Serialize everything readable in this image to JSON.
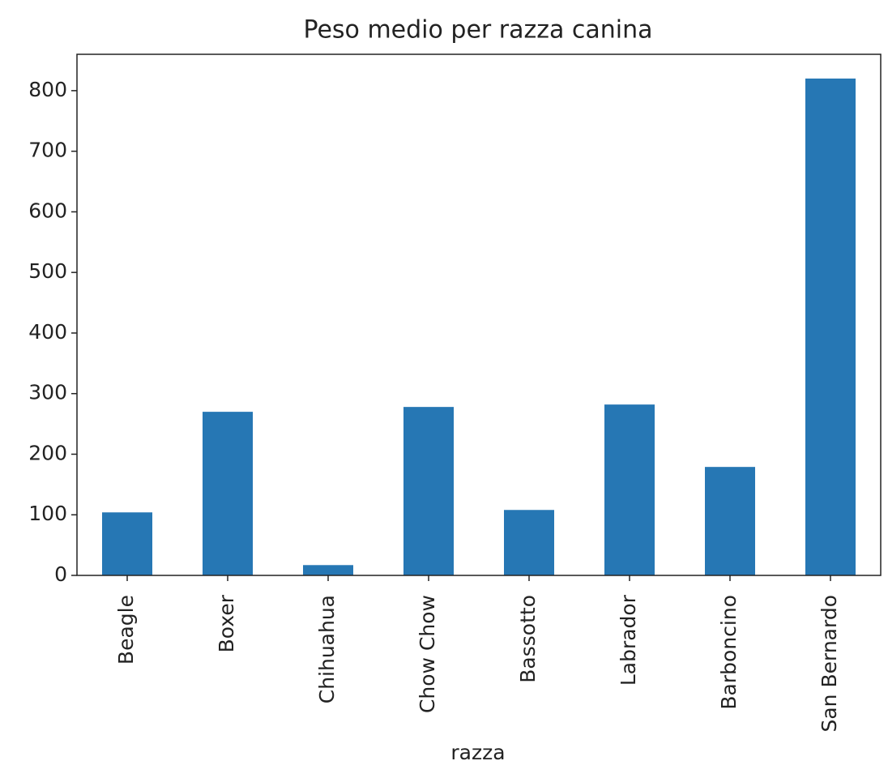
{
  "chart_data": {
    "type": "bar",
    "title": "Peso medio per razza canina",
    "x_label": "razza",
    "categories": [
      "Beagle",
      "Boxer",
      "Chihuahua",
      "Chow Chow",
      "Bassotto",
      "Labrador",
      "Barboncino",
      "San Bernardo"
    ],
    "values": [
      104,
      270,
      17,
      278,
      108,
      282,
      179,
      820
    ],
    "color": "#2677b4",
    "ylim": [
      0,
      860
    ],
    "yticks": [
      0,
      100,
      200,
      300,
      400,
      500,
      600,
      700,
      800
    ],
    "grid": false
  }
}
